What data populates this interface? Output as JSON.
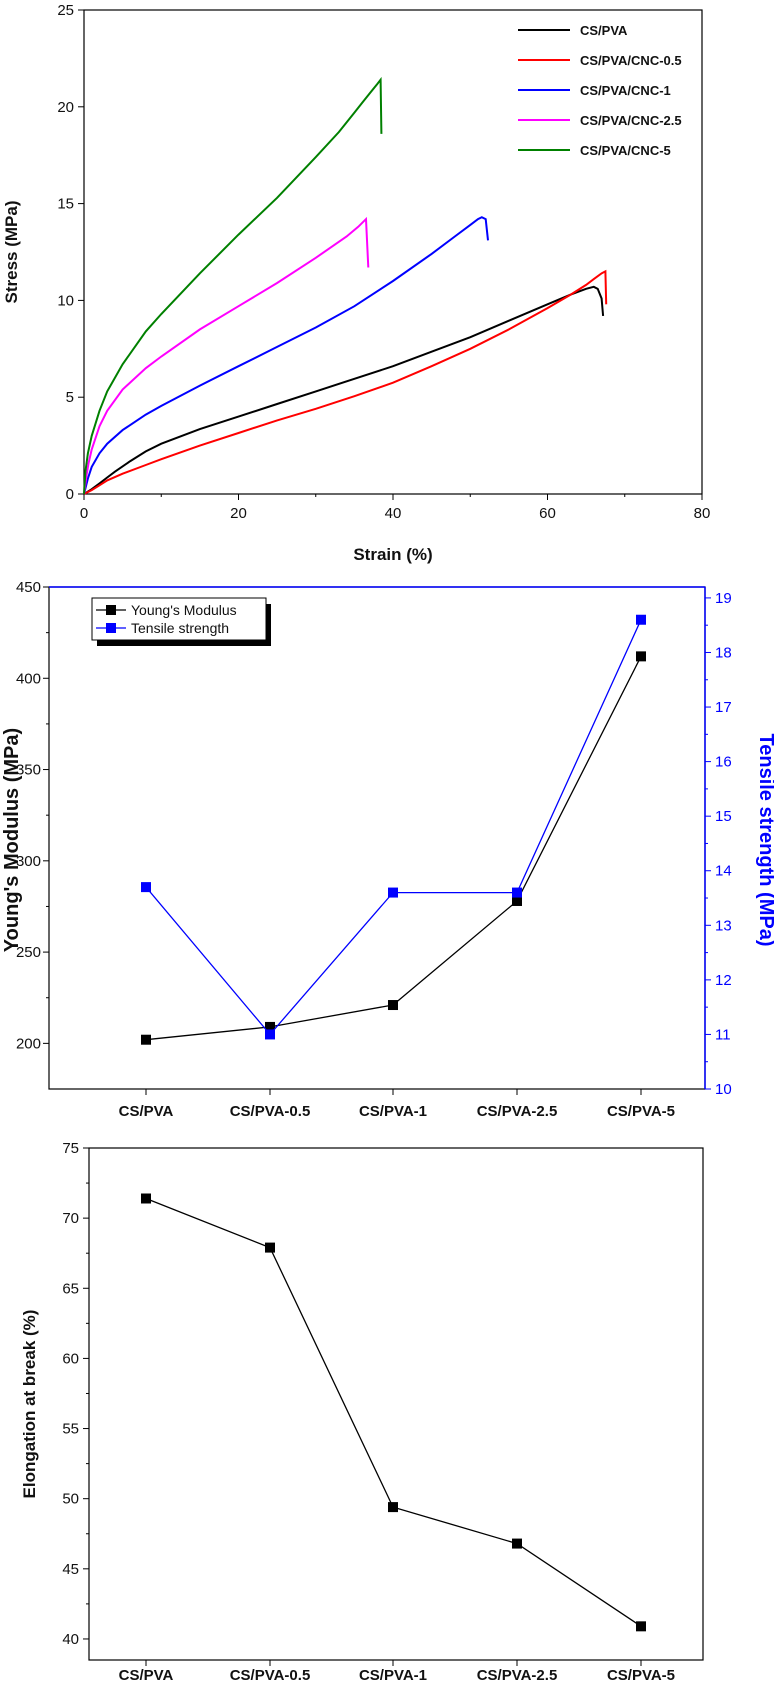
{
  "chart_data": [
    {
      "type": "line",
      "title": "",
      "xlabel": "Strain (%)",
      "ylabel": "Stress (MPa)",
      "xlim": [
        0,
        80
      ],
      "ylim": [
        0,
        25
      ],
      "xticks": [
        "0",
        "20",
        "40",
        "60",
        "80"
      ],
      "yticks": [
        "0",
        "5",
        "10",
        "15",
        "20",
        "25"
      ],
      "grid": false,
      "legend_position": "top-right",
      "series": [
        {
          "name": "CS/PVA",
          "color": "#000000",
          "x": [
            0,
            1,
            2,
            3,
            4,
            6,
            8,
            10,
            15,
            20,
            25,
            30,
            35,
            40,
            45,
            50,
            55,
            60,
            63,
            65,
            66,
            66.5,
            67,
            67.2
          ],
          "y": [
            0,
            0.25,
            0.55,
            0.85,
            1.15,
            1.7,
            2.2,
            2.6,
            3.35,
            4.0,
            4.65,
            5.3,
            5.95,
            6.6,
            7.35,
            8.1,
            8.95,
            9.8,
            10.3,
            10.6,
            10.7,
            10.6,
            10.1,
            9.2
          ]
        },
        {
          "name": "CS/PVA/CNC-0.5",
          "color": "#ff0000",
          "x": [
            0,
            1,
            2,
            3,
            5,
            8,
            10,
            15,
            20,
            25,
            30,
            35,
            40,
            45,
            50,
            55,
            60,
            63,
            65,
            66,
            67,
            67.5,
            67.6
          ],
          "y": [
            0,
            0.2,
            0.45,
            0.7,
            1.05,
            1.5,
            1.8,
            2.5,
            3.15,
            3.8,
            4.4,
            5.05,
            5.75,
            6.6,
            7.5,
            8.5,
            9.6,
            10.3,
            10.8,
            11.1,
            11.4,
            11.5,
            9.8
          ]
        },
        {
          "name": "CS/PVA/CNC-1",
          "color": "#0000ff",
          "x": [
            0,
            0.5,
            1,
            2,
            3,
            5,
            8,
            10,
            15,
            20,
            25,
            30,
            35,
            40,
            45,
            48,
            50,
            51,
            51.5,
            52,
            52.3
          ],
          "y": [
            0,
            0.8,
            1.4,
            2.1,
            2.6,
            3.3,
            4.1,
            4.55,
            5.6,
            6.6,
            7.6,
            8.6,
            9.7,
            11.0,
            12.4,
            13.3,
            13.9,
            14.2,
            14.3,
            14.2,
            13.1
          ]
        },
        {
          "name": "CS/PVA/CNC-2.5",
          "color": "#ff00ff",
          "x": [
            0,
            0.3,
            0.6,
            1,
            2,
            3,
            5,
            8,
            10,
            15,
            20,
            25,
            30,
            34,
            35.5,
            36.5,
            36.8
          ],
          "y": [
            0,
            0.9,
            1.6,
            2.3,
            3.5,
            4.3,
            5.4,
            6.5,
            7.1,
            8.5,
            9.7,
            10.9,
            12.2,
            13.3,
            13.8,
            14.2,
            11.7
          ]
        },
        {
          "name": "CS/PVA/CNC-5",
          "color": "#008000",
          "x": [
            0,
            0.2,
            0.5,
            1,
            2,
            3,
            5,
            8,
            10,
            15,
            20,
            25,
            30,
            33,
            35,
            36,
            37,
            38,
            38.4,
            38.5
          ],
          "y": [
            0,
            1.2,
            2.1,
            3.0,
            4.3,
            5.3,
            6.7,
            8.4,
            9.3,
            11.4,
            13.4,
            15.3,
            17.4,
            18.7,
            19.7,
            20.2,
            20.7,
            21.2,
            21.4,
            18.6
          ]
        }
      ]
    },
    {
      "type": "line",
      "title": "",
      "xlabel": "",
      "ylabel": "Young's Modulus (MPa)",
      "y2label": "Tensile strength (MPa)",
      "categories": [
        "CS/PVA",
        "CS/PVA-0.5",
        "CS/PVA-1",
        "CS/PVA-2.5",
        "CS/PVA-5"
      ],
      "ylim": [
        175,
        450
      ],
      "y2lim": [
        10,
        19.2
      ],
      "yticks": [
        "200",
        "250",
        "300",
        "350",
        "400",
        "450"
      ],
      "y2ticks": [
        "10",
        "11",
        "12",
        "13",
        "14",
        "15",
        "16",
        "17",
        "18",
        "19"
      ],
      "grid": false,
      "legend_position": "top-left",
      "series": [
        {
          "name": "Young's Modulus",
          "color": "#000000",
          "axis": "left",
          "values": [
            202,
            209,
            221,
            278,
            412
          ]
        },
        {
          "name": "Tensile strength",
          "color": "#0000ff",
          "axis": "right",
          "values": [
            13.7,
            11.0,
            13.6,
            13.6,
            18.6
          ]
        }
      ]
    },
    {
      "type": "line",
      "title": "",
      "xlabel": "",
      "ylabel": "Elongation at break (%)",
      "categories": [
        "CS/PVA",
        "CS/PVA-0.5",
        "CS/PVA-1",
        "CS/PVA-2.5",
        "CS/PVA-5"
      ],
      "ylim": [
        38.5,
        75
      ],
      "yticks": [
        "40",
        "45",
        "50",
        "55",
        "60",
        "65",
        "70",
        "75"
      ],
      "grid": false,
      "series": [
        {
          "name": "",
          "color": "#000000",
          "values": [
            71.4,
            67.9,
            49.4,
            46.8,
            40.9
          ]
        }
      ]
    }
  ]
}
